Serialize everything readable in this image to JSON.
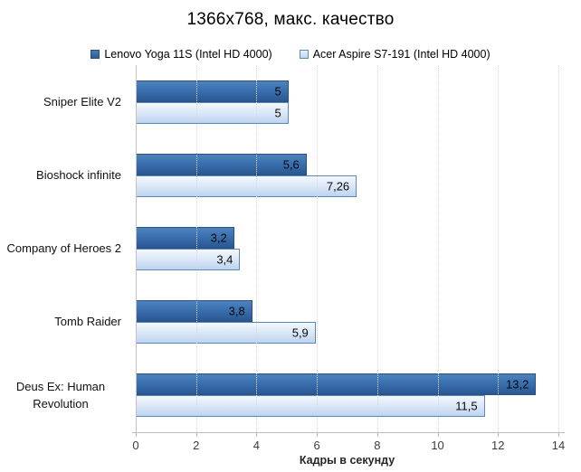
{
  "chart_data": {
    "type": "bar",
    "orientation": "horizontal",
    "title": "1366x768, макс. качество",
    "xlabel": "Кадры в секунду",
    "categories": [
      "Sniper Elite V2",
      "Bioshock infinite",
      "Company of Heroes 2",
      "Tomb Raider",
      "Deus Ex: Human Revolution"
    ],
    "series": [
      {
        "name": "Lenovo Yoga 11S (Intel HD 4000)",
        "values": [
          5,
          5.6,
          3.2,
          3.8,
          13.2
        ],
        "labels": [
          "5",
          "5,6",
          "3,2",
          "3,8",
          "13,2"
        ],
        "color": "#3b71b0",
        "border_color": "#2a5183"
      },
      {
        "name": "Acer Aspire S7-191 (Intel HD 4000)",
        "values": [
          5,
          7.26,
          3.4,
          5.9,
          11.5
        ],
        "labels": [
          "5",
          "7,26",
          "3,4",
          "5,9",
          "11,5"
        ],
        "color": "#cfe0f5",
        "border_color": "#5d88bb"
      }
    ],
    "xlim": [
      0,
      14
    ],
    "xticks": [
      0,
      2,
      4,
      6,
      8,
      10,
      12,
      14
    ],
    "xtick_labels": [
      "0",
      "2",
      "4",
      "6",
      "8",
      "10",
      "12",
      "14"
    ],
    "grid": true,
    "gridline_color": "#d9d9d9",
    "axis_color": "#bfbfbf",
    "legend_position": "top",
    "label_color": "#0a0a0a"
  }
}
